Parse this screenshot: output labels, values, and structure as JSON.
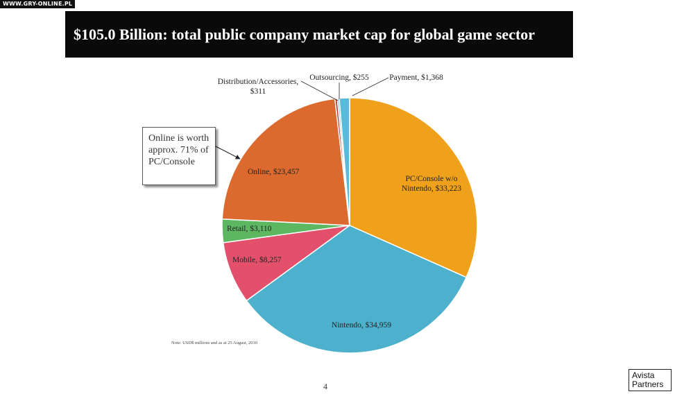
{
  "watermark": "WWW.GRY-ONLINE.PL",
  "slide": {
    "title": "$105.0 Billion: total public company market cap for global game sector",
    "callout": "Online is worth approx. 71% of PC/Console",
    "note": "Note: USD$ millions and as at 25 August, 2010",
    "page_number": "4",
    "logo_line1": "Avista",
    "logo_line2": "Partners"
  },
  "colors": {
    "title_background": "#0a0a0a",
    "title_text": "#ffffff",
    "pc_console": "#F0A11C",
    "nintendo": "#4DB1CD",
    "mobile": "#E2506B",
    "retail": "#5DB760",
    "online": "#DC6A2F",
    "distribution": "#B23A2A",
    "outsourcing": "#8FCBE0",
    "payment": "#5ABAD9"
  },
  "chart_data": {
    "type": "pie",
    "title": "$105.0 Billion: total public company market cap for global game sector",
    "unit": "USD$ millions",
    "start": "12 o'clock",
    "direction": "clockwise",
    "slices": [
      {
        "key": "pc_console",
        "name": "PC/Console w/o Nintendo",
        "value": 33223,
        "label": "PC/Console w/o Nintendo, $33,223",
        "label_lines": [
          "PC/Console w/o",
          "Nintendo, $33,223"
        ],
        "color": "#F0A11C"
      },
      {
        "key": "nintendo",
        "name": "Nintendo",
        "value": 34959,
        "label": "Nintendo, $34,959",
        "label_lines": [
          "Nintendo, $34,959"
        ],
        "color": "#4DB1CD"
      },
      {
        "key": "mobile",
        "name": "Mobile",
        "value": 8257,
        "label": "Mobile, $8,257",
        "label_lines": [
          "Mobile, $8,257"
        ],
        "color": "#E2506B"
      },
      {
        "key": "retail",
        "name": "Retail",
        "value": 3110,
        "label": "Retail, $3,110",
        "label_lines": [
          "Retail, $3,110"
        ],
        "color": "#5DB760"
      },
      {
        "key": "online",
        "name": "Online",
        "value": 23457,
        "label": "Online, $23,457",
        "label_lines": [
          "Online, $23,457"
        ],
        "color": "#DC6A2F"
      },
      {
        "key": "distribution",
        "name": "Distribution/Accessories",
        "value": 311,
        "label": "Distribution/Accessories, $311",
        "label_lines": [
          "Distribution/Accessories,",
          "$311"
        ],
        "color": "#B23A2A"
      },
      {
        "key": "outsourcing",
        "name": "Outsourcing",
        "value": 255,
        "label": "Outsourcing, $255",
        "label_lines": [
          "Outsourcing, $255"
        ],
        "color": "#8FCBE0"
      },
      {
        "key": "payment",
        "name": "Payment",
        "value": 1368,
        "label": "Payment, $1,368",
        "label_lines": [
          "Payment, $1,368"
        ],
        "color": "#5ABAD9"
      }
    ]
  }
}
